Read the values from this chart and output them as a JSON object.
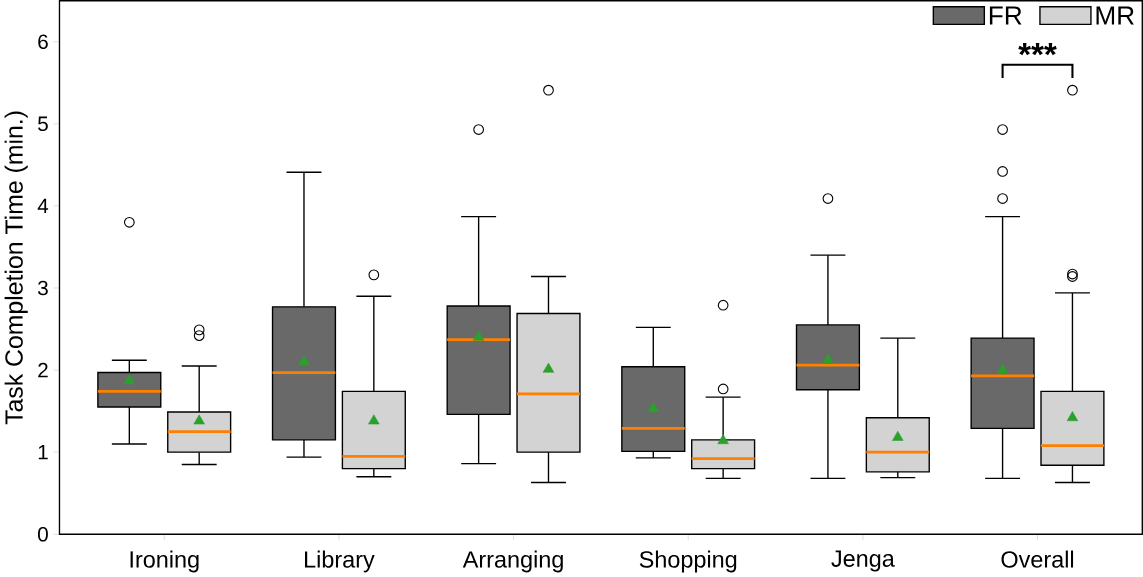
{
  "chart_data": {
    "type": "box",
    "ylabel": "Task Completion Time (min.)",
    "categories": [
      "Ironing",
      "Library",
      "Arranging",
      "Shopping",
      "Jenga",
      "Overall"
    ],
    "ylim": [
      0,
      6.5
    ],
    "yticks": [
      0,
      1,
      2,
      3,
      4,
      5,
      6
    ],
    "legend": "top right",
    "annotations": [
      "***"
    ],
    "series": [
      {
        "name": "FR",
        "color": "#696969",
        "boxes": [
          {
            "low": 1.1,
            "q1": 1.55,
            "median": 1.74,
            "q3": 1.97,
            "high": 2.12,
            "mean": 1.87,
            "outliers": [
              3.8
            ]
          },
          {
            "low": 0.94,
            "q1": 1.15,
            "median": 1.97,
            "q3": 2.77,
            "high": 4.41,
            "mean": 2.1
          },
          {
            "low": 0.86,
            "q1": 1.46,
            "median": 2.37,
            "q3": 2.78,
            "high": 3.87,
            "mean": 2.4,
            "outliers": [
              4.93
            ]
          },
          {
            "low": 0.93,
            "q1": 1.01,
            "median": 1.29,
            "q3": 2.04,
            "high": 2.52,
            "mean": 1.53
          },
          {
            "low": 0.68,
            "q1": 1.76,
            "median": 2.06,
            "q3": 2.55,
            "high": 3.4,
            "mean": 2.12,
            "outliers": [
              4.09
            ]
          },
          {
            "low": 0.68,
            "q1": 1.29,
            "median": 1.93,
            "q3": 2.39,
            "high": 3.87,
            "mean": 2.0,
            "outliers": [
              4.09,
              4.42,
              4.93
            ]
          }
        ]
      },
      {
        "name": "MR",
        "color": "#d3d3d3",
        "boxes": [
          {
            "low": 0.85,
            "q1": 1.0,
            "median": 1.25,
            "q3": 1.49,
            "high": 2.05,
            "mean": 1.38,
            "outliers": [
              2.42,
              2.49
            ]
          },
          {
            "low": 0.7,
            "q1": 0.8,
            "median": 0.95,
            "q3": 1.74,
            "high": 2.9,
            "mean": 1.38,
            "outliers": [
              3.16
            ]
          },
          {
            "low": 0.63,
            "q1": 1.0,
            "median": 1.71,
            "q3": 2.69,
            "high": 3.14,
            "mean": 2.01,
            "outliers": [
              5.41
            ]
          },
          {
            "low": 0.68,
            "q1": 0.8,
            "median": 0.92,
            "q3": 1.15,
            "high": 1.67,
            "mean": 1.14,
            "outliers": [
              1.77,
              2.79
            ]
          },
          {
            "low": 0.69,
            "q1": 0.76,
            "median": 1.0,
            "q3": 1.42,
            "high": 2.39,
            "mean": 1.18
          },
          {
            "low": 0.63,
            "q1": 0.84,
            "median": 1.08,
            "q3": 1.74,
            "high": 2.94,
            "mean": 1.42,
            "outliers": [
              3.14,
              3.17,
              5.41
            ]
          }
        ]
      }
    ]
  }
}
